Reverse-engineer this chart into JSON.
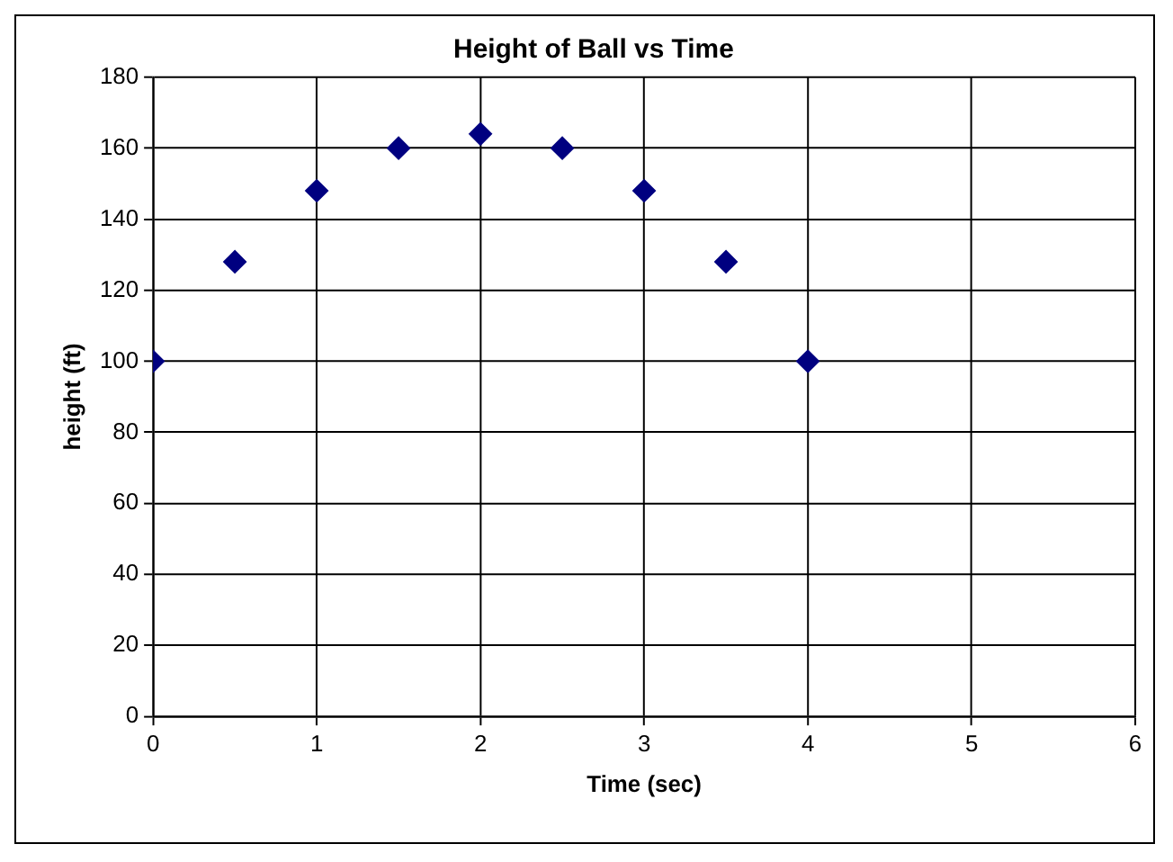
{
  "chart_data": {
    "type": "scatter",
    "title": "Height of Ball vs Time",
    "xlabel": "Time (sec)",
    "ylabel": "height (ft)",
    "x": [
      0,
      0.5,
      1,
      1.5,
      2,
      2.5,
      3,
      3.5,
      4
    ],
    "values": [
      100,
      128,
      148,
      160,
      164,
      160,
      148,
      128,
      100
    ],
    "color": "#000080",
    "marker": "diamond",
    "xlim": [
      0,
      6
    ],
    "xticks": [
      0,
      1,
      2,
      3,
      4,
      5,
      6
    ],
    "ylim": [
      0,
      180
    ],
    "yticks": [
      0,
      20,
      40,
      60,
      80,
      100,
      120,
      140,
      160,
      180
    ],
    "grid": true
  }
}
